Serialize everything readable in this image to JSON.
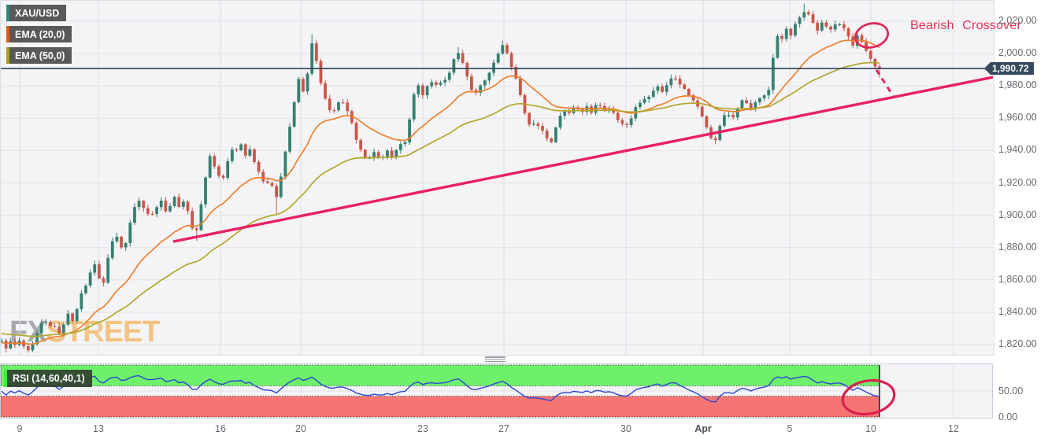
{
  "legends": {
    "symbol": "XAU/USD",
    "ema20": "EMA (20,0)",
    "ema50": "EMA (50,0)",
    "rsi": "RSI (14,60,40,1)"
  },
  "annotations": {
    "bearish_crossover": "Bearish Crossover"
  },
  "watermark": {
    "fx": "FX",
    "street": "STREET"
  },
  "last_price": {
    "label": "1,990.72",
    "value": 1990.72
  },
  "chart_data": {
    "type": "candlestick",
    "title": "XAU/USD 4-hour chart with EMA(20), EMA(50), ascending trendline and RSI(14) panel",
    "legend_position": "top-left",
    "grid": true,
    "price_axis": {
      "p1": 2020,
      "y1": 27,
      "p2": 1820,
      "y2": 438,
      "pane_top": 1,
      "pane_bottom": 451,
      "pane_right": 1262
    },
    "rsi_axis": {
      "r1": 0,
      "y1": 530,
      "r2": 100,
      "y2": 464,
      "pane_top": 463,
      "pane_bottom": 531
    },
    "price_ticks": [
      {
        "label": "2,020.00",
        "value": 2020
      },
      {
        "label": "2,000.00",
        "value": 2000
      },
      {
        "label": "1,980.00",
        "value": 1980
      },
      {
        "label": "1,960.00",
        "value": 1960
      },
      {
        "label": "1,940.00",
        "value": 1940
      },
      {
        "label": "1,920.00",
        "value": 1920
      },
      {
        "label": "1,900.00",
        "value": 1900
      },
      {
        "label": "1,880.00",
        "value": 1880
      },
      {
        "label": "1,860.00",
        "value": 1860
      },
      {
        "label": "1,840.00",
        "value": 1840
      },
      {
        "label": "1,820.00",
        "value": 1820
      }
    ],
    "rsi_ticks": [
      {
        "label": "50.00",
        "value": 50
      },
      {
        "label": "0.00",
        "value": 0
      }
    ],
    "x_ticks": [
      {
        "label": "9",
        "x": 25,
        "bold": false
      },
      {
        "label": "13",
        "x": 125,
        "bold": false
      },
      {
        "label": "16",
        "x": 280,
        "bold": false
      },
      {
        "label": "20",
        "x": 382,
        "bold": false
      },
      {
        "label": "23",
        "x": 537,
        "bold": false
      },
      {
        "label": "27",
        "x": 640,
        "bold": false
      },
      {
        "label": "30",
        "x": 795,
        "bold": false
      },
      {
        "label": "Apr",
        "x": 893,
        "bold": true
      },
      {
        "label": "5",
        "x": 1003,
        "bold": false
      },
      {
        "label": "10",
        "x": 1106,
        "bold": false
      },
      {
        "label": "12",
        "x": 1211,
        "bold": false
      }
    ],
    "candles": {
      "x_start": 2,
      "x_end": 1117,
      "count": 199,
      "body_width": 3.8
    },
    "price_anchors": [
      [
        2,
        1822
      ],
      [
        8,
        1818
      ],
      [
        14,
        1822
      ],
      [
        20,
        1819
      ],
      [
        26,
        1823
      ],
      [
        32,
        1817
      ],
      [
        38,
        1815
      ],
      [
        44,
        1823
      ],
      [
        50,
        1830
      ],
      [
        56,
        1836
      ],
      [
        62,
        1830
      ],
      [
        68,
        1834
      ],
      [
        74,
        1825
      ],
      [
        80,
        1832
      ],
      [
        86,
        1839
      ],
      [
        92,
        1835
      ],
      [
        98,
        1843
      ],
      [
        104,
        1852
      ],
      [
        110,
        1858
      ],
      [
        116,
        1866
      ],
      [
        121,
        1871
      ],
      [
        126,
        1861
      ],
      [
        131,
        1856
      ],
      [
        136,
        1872
      ],
      [
        141,
        1881
      ],
      [
        146,
        1889
      ],
      [
        152,
        1883
      ],
      [
        157,
        1876
      ],
      [
        162,
        1890
      ],
      [
        168,
        1901
      ],
      [
        174,
        1910
      ],
      [
        180,
        1907
      ],
      [
        186,
        1902
      ],
      [
        192,
        1899
      ],
      [
        198,
        1905
      ],
      [
        204,
        1909
      ],
      [
        210,
        1903
      ],
      [
        216,
        1906
      ],
      [
        222,
        1911
      ],
      [
        228,
        1905
      ],
      [
        234,
        1909
      ],
      [
        240,
        1901
      ],
      [
        244,
        1892
      ],
      [
        248,
        1886
      ],
      [
        252,
        1897
      ],
      [
        256,
        1908
      ],
      [
        260,
        1920
      ],
      [
        264,
        1932
      ],
      [
        268,
        1939
      ],
      [
        272,
        1931
      ],
      [
        277,
        1925
      ],
      [
        282,
        1921
      ],
      [
        287,
        1930
      ],
      [
        292,
        1938
      ],
      [
        297,
        1944
      ],
      [
        302,
        1939
      ],
      [
        307,
        1944
      ],
      [
        312,
        1937
      ],
      [
        317,
        1942
      ],
      [
        322,
        1934
      ],
      [
        327,
        1929
      ],
      [
        332,
        1923
      ],
      [
        337,
        1917
      ],
      [
        342,
        1922
      ],
      [
        347,
        1916
      ],
      [
        352,
        1911
      ],
      [
        357,
        1924
      ],
      [
        362,
        1938
      ],
      [
        367,
        1952
      ],
      [
        372,
        1964
      ],
      [
        377,
        1980
      ],
      [
        381,
        1987
      ],
      [
        385,
        1977
      ],
      [
        389,
        1984
      ],
      [
        393,
        1993
      ],
      [
        397,
        2009
      ],
      [
        400,
        2001
      ],
      [
        404,
        1988
      ],
      [
        408,
        1980
      ],
      [
        413,
        1973
      ],
      [
        418,
        1966
      ],
      [
        423,
        1963
      ],
      [
        428,
        1969
      ],
      [
        433,
        1972
      ],
      [
        438,
        1967
      ],
      [
        443,
        1962
      ],
      [
        448,
        1955
      ],
      [
        453,
        1946
      ],
      [
        458,
        1940
      ],
      [
        463,
        1935
      ],
      [
        468,
        1933
      ],
      [
        473,
        1939
      ],
      [
        478,
        1941
      ],
      [
        483,
        1933
      ],
      [
        488,
        1937
      ],
      [
        493,
        1940
      ],
      [
        498,
        1935
      ],
      [
        503,
        1941
      ],
      [
        508,
        1944
      ],
      [
        513,
        1942
      ],
      [
        518,
        1953
      ],
      [
        523,
        1969
      ],
      [
        527,
        1977
      ],
      [
        532,
        1980
      ],
      [
        537,
        1974
      ],
      [
        542,
        1980
      ],
      [
        547,
        1983
      ],
      [
        552,
        1978
      ],
      [
        557,
        1985
      ],
      [
        562,
        1980
      ],
      [
        567,
        1985
      ],
      [
        572,
        1990
      ],
      [
        577,
        1997
      ],
      [
        582,
        2001
      ],
      [
        587,
        1995
      ],
      [
        592,
        1988
      ],
      [
        597,
        1980
      ],
      [
        602,
        1974
      ],
      [
        607,
        1978
      ],
      [
        612,
        1981
      ],
      [
        617,
        1984
      ],
      [
        622,
        1989
      ],
      [
        627,
        1995
      ],
      [
        632,
        2000
      ],
      [
        637,
        2004
      ],
      [
        641,
        2006
      ],
      [
        645,
        1999
      ],
      [
        650,
        1991
      ],
      [
        655,
        1985
      ],
      [
        660,
        1976
      ],
      [
        665,
        1966
      ],
      [
        670,
        1958
      ],
      [
        675,
        1954
      ],
      [
        680,
        1958
      ],
      [
        685,
        1955
      ],
      [
        690,
        1951
      ],
      [
        695,
        1948
      ],
      [
        700,
        1945
      ],
      [
        705,
        1953
      ],
      [
        710,
        1961
      ],
      [
        716,
        1964
      ],
      [
        722,
        1962
      ],
      [
        728,
        1967
      ],
      [
        734,
        1965
      ],
      [
        740,
        1963
      ],
      [
        746,
        1968
      ],
      [
        752,
        1963
      ],
      [
        758,
        1969
      ],
      [
        764,
        1966
      ],
      [
        770,
        1964
      ],
      [
        776,
        1967
      ],
      [
        782,
        1961
      ],
      [
        788,
        1958
      ],
      [
        794,
        1954
      ],
      [
        800,
        1958
      ],
      [
        806,
        1966
      ],
      [
        812,
        1970
      ],
      [
        818,
        1971
      ],
      [
        824,
        1974
      ],
      [
        830,
        1977
      ],
      [
        836,
        1980
      ],
      [
        842,
        1976
      ],
      [
        848,
        1982
      ],
      [
        854,
        1986
      ],
      [
        860,
        1984
      ],
      [
        866,
        1980
      ],
      [
        872,
        1976
      ],
      [
        878,
        1973
      ],
      [
        884,
        1969
      ],
      [
        890,
        1963
      ],
      [
        896,
        1957
      ],
      [
        902,
        1949
      ],
      [
        908,
        1945
      ],
      [
        913,
        1954
      ],
      [
        918,
        1961
      ],
      [
        924,
        1963
      ],
      [
        930,
        1960
      ],
      [
        936,
        1966
      ],
      [
        942,
        1972
      ],
      [
        948,
        1969
      ],
      [
        954,
        1966
      ],
      [
        960,
        1970
      ],
      [
        966,
        1973
      ],
      [
        972,
        1975
      ],
      [
        977,
        1978
      ],
      [
        981,
        1994
      ],
      [
        985,
        2008
      ],
      [
        989,
        2013
      ],
      [
        994,
        2009
      ],
      [
        999,
        2015
      ],
      [
        1004,
        2011
      ],
      [
        1009,
        2017
      ],
      [
        1014,
        2021
      ],
      [
        1019,
        2025
      ],
      [
        1024,
        2028
      ],
      [
        1029,
        2023
      ],
      [
        1034,
        2017
      ],
      [
        1039,
        2014
      ],
      [
        1044,
        2019
      ],
      [
        1049,
        2017
      ],
      [
        1054,
        2014
      ],
      [
        1059,
        2019
      ],
      [
        1064,
        2017
      ],
      [
        1069,
        2018
      ],
      [
        1074,
        2014
      ],
      [
        1079,
        2009
      ],
      [
        1084,
        2004
      ],
      [
        1089,
        2011
      ],
      [
        1094,
        2007
      ],
      [
        1099,
        2002
      ],
      [
        1104,
        1998
      ],
      [
        1109,
        1994
      ],
      [
        1113,
        1991
      ],
      [
        1117,
        1990.72
      ]
    ],
    "special_wicks": [
      {
        "x": 397,
        "high": 2012
      },
      {
        "x": 247,
        "low": 1884
      },
      {
        "x": 352,
        "low": 1901
      },
      {
        "x": 582,
        "high": 2004
      },
      {
        "x": 641,
        "high": 2008
      },
      {
        "x": 908,
        "low": 1944
      },
      {
        "x": 1024,
        "high": 2031
      },
      {
        "x": 1117,
        "low": 1985
      }
    ],
    "ema": [
      {
        "name": "EMA (20,0)",
        "period": 20,
        "color": "#ef7f2d",
        "seed": 1821
      },
      {
        "name": "EMA (50,0)",
        "period": 50,
        "color": "#b2a62b",
        "seed": 1827
      }
    ],
    "trendline": {
      "x1": 220,
      "price1": 1883.7,
      "x2": 1262,
      "price2": 1985.5,
      "color": "#ea1f63",
      "width": 3.4
    },
    "projection": {
      "x1": 1113,
      "price1": 1990,
      "x2": 1136,
      "price2": 1972.5,
      "color": "#e0285a",
      "width": 3,
      "dash": "7,6"
    },
    "last_price_line": {
      "value": 1990.72,
      "color": "#2c4561",
      "width": 1.6
    },
    "ellipses": [
      {
        "cx": 1107,
        "cy": 45,
        "rx": 21,
        "ry": 15,
        "rotate": -14,
        "stroke": "#e0285a",
        "width": 2.8
      },
      {
        "cx": 1103,
        "cy": 505,
        "rx": 33,
        "ry": 21,
        "rotate": -10,
        "stroke": "#d92050",
        "width": 3.2
      }
    ],
    "rsi_indicator": {
      "period": 14,
      "upper_level": 60,
      "lower_level": 40,
      "overbought_band": {
        "from": 60,
        "to": 100,
        "color": "#6ef06a"
      },
      "oversold_band": {
        "from": 0,
        "to": 40,
        "color": "#f57573"
      },
      "band_x_end": 1117,
      "line_color": "#2b46cf",
      "last_value_approx": 26
    },
    "colors": {
      "candle_up": "#35806f",
      "candle_down": "#c9564a",
      "grid": "#e4e4e9",
      "grid_vertical": "#dedee4",
      "pane_bg": "#f4f4f6",
      "axis_text": "#666a70",
      "badge_bg": "#35495e",
      "annotation_text": "#e62e55"
    }
  }
}
